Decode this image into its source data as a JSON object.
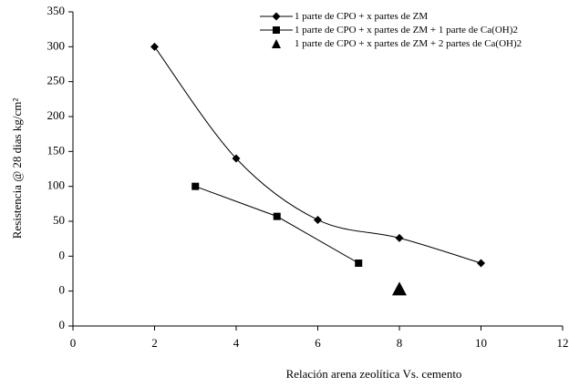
{
  "chart_data": {
    "type": "line",
    "x_label": "Relación arena zeolítica Vs. cemento",
    "y_label": "Resistencia @ 28 dias kg/cm²",
    "xlim": [
      0,
      12
    ],
    "xticks": [
      0,
      2,
      4,
      6,
      8,
      10,
      12
    ],
    "ylim": [
      -100,
      350
    ],
    "yticks": [
      {
        "value": -100,
        "label": "0"
      },
      {
        "value": -50,
        "label": "0"
      },
      0,
      50,
      100,
      150,
      200,
      250,
      300,
      350
    ],
    "series": [
      {
        "name": "1 parte de CPO + x partes de ZM",
        "color": "#000000",
        "marker": "diamond",
        "line": "smooth",
        "x": [
          2,
          4,
          6,
          8,
          10
        ],
        "values": [
          300,
          140,
          52,
          26,
          -10
        ]
      },
      {
        "name": "1 parte de CPO + x partes de ZM + 1 parte de Ca(OH)2",
        "color": "#000000",
        "marker": "square",
        "line": "straight",
        "x": [
          3,
          5,
          7
        ],
        "values": [
          100,
          57,
          -10
        ]
      },
      {
        "name": "1 parte de CPO + x partes de ZM + 2 partes de Ca(OH)2",
        "color": "#000000",
        "marker": "triangle",
        "line": "none",
        "x": [
          8
        ],
        "values": [
          -47
        ]
      }
    ]
  }
}
